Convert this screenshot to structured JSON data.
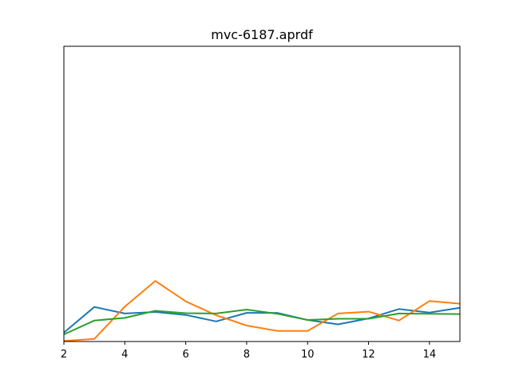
{
  "chart_data": {
    "type": "line",
    "title": "mvc-6187.aprdf",
    "xlabel": "",
    "ylabel": "",
    "xlim": [
      2,
      15
    ],
    "ylim": [
      0,
      1
    ],
    "x_ticks": [
      2,
      4,
      6,
      8,
      10,
      12,
      14
    ],
    "y_ticks_visible": false,
    "grid": false,
    "legend": "none",
    "x": [
      2,
      3,
      4,
      5,
      6,
      7,
      8,
      9,
      10,
      11,
      12,
      13,
      14,
      15
    ],
    "series": [
      {
        "color": "#1f77b4",
        "values": [
          0.03,
          0.117,
          0.095,
          0.1,
          0.09,
          0.068,
          0.097,
          0.097,
          0.073,
          0.058,
          0.078,
          0.11,
          0.098,
          0.114
        ]
      },
      {
        "color": "#ff7f0e",
        "values": [
          0.002,
          0.009,
          0.118,
          0.205,
          0.136,
          0.089,
          0.054,
          0.036,
          0.036,
          0.095,
          0.101,
          0.071,
          0.137,
          0.128
        ]
      },
      {
        "color": "#2ca02c",
        "values": [
          0.024,
          0.071,
          0.08,
          0.104,
          0.096,
          0.095,
          0.108,
          0.094,
          0.073,
          0.077,
          0.077,
          0.095,
          0.094,
          0.093
        ]
      }
    ]
  }
}
